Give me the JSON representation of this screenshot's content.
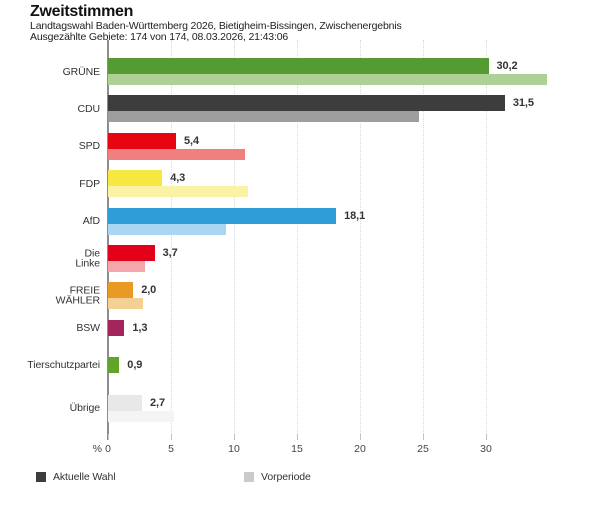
{
  "header": {
    "title": "Zweitstimmen",
    "subtitle": "Landtagswahl Baden-Württemberg 2026, Bietigheim-Bissingen, Zwischenergebnis",
    "status_line": "Ausgezählte Gebiete: 174 von 174, 08.03.2026, 21:43:06"
  },
  "chart_data": {
    "type": "bar",
    "orientation": "horizontal",
    "title": "Zweitstimmen",
    "unit": "%",
    "categories": [
      "GRÜNE",
      "CDU",
      "SPD",
      "FDP",
      "AfD",
      "Die Linke",
      "FREIE WÄHLER",
      "BSW",
      "Tierschutzpartei",
      "Übrige"
    ],
    "series": [
      {
        "name": "Aktuelle Wahl",
        "values": [
          30.2,
          31.5,
          5.4,
          4.3,
          18.1,
          3.7,
          2.0,
          1.3,
          0.9,
          2.7
        ]
      },
      {
        "name": "Vorperiode",
        "values": [
          34.8,
          24.7,
          10.9,
          11.1,
          9.4,
          2.9,
          2.8,
          null,
          null,
          5.2
        ]
      }
    ],
    "value_labels": [
      "30,2",
      "31,5",
      "5,4",
      "4,3",
      "18,1",
      "3,7",
      "2,0",
      "1,3",
      "0,9",
      "2,7"
    ],
    "x_ticks": [
      0,
      5,
      10,
      15,
      20,
      25,
      30
    ],
    "x_tick_labels": [
      "0",
      "5",
      "10",
      "15",
      "20",
      "25",
      "30"
    ],
    "xlim": [
      0,
      35.5
    ],
    "grid": true,
    "legend_position": "bottom",
    "rows": [
      {
        "label_lines": [
          "GRÜNE"
        ],
        "color_current": "#549b32",
        "color_previous": "#aed096"
      },
      {
        "label_lines": [
          "CDU"
        ],
        "color_current": "#3d3d3d",
        "color_previous": "#9e9e9e"
      },
      {
        "label_lines": [
          "SPD"
        ],
        "color_current": "#e60511",
        "color_previous": "#f0807f"
      },
      {
        "label_lines": [
          "FDP"
        ],
        "color_current": "#f6e743",
        "color_previous": "#faf3a6"
      },
      {
        "label_lines": [
          "AfD"
        ],
        "color_current": "#2f9ed8",
        "color_previous": "#a9d7f1"
      },
      {
        "label_lines": [
          "Die",
          "Linke"
        ],
        "color_current": "#e3001b",
        "color_previous": "#f5a6ad"
      },
      {
        "label_lines": [
          "FREIE",
          "WÄHLER"
        ],
        "color_current": "#e99a25",
        "color_previous": "#f3d093"
      },
      {
        "label_lines": [
          "BSW"
        ],
        "color_current": "#a2265c",
        "color_previous": null
      },
      {
        "label_lines": [
          "Tierschutzpartei"
        ],
        "color_current": "#63a32a",
        "color_previous": null
      },
      {
        "label_lines": [
          "Übrige"
        ],
        "color_current": "#e8e8e8",
        "color_previous": "#f4f4f4"
      }
    ],
    "legend": [
      {
        "label": "Aktuelle Wahl",
        "color": "#3d3d3d"
      },
      {
        "label": "Vorperiode",
        "color": "#cbcbcb"
      }
    ]
  }
}
